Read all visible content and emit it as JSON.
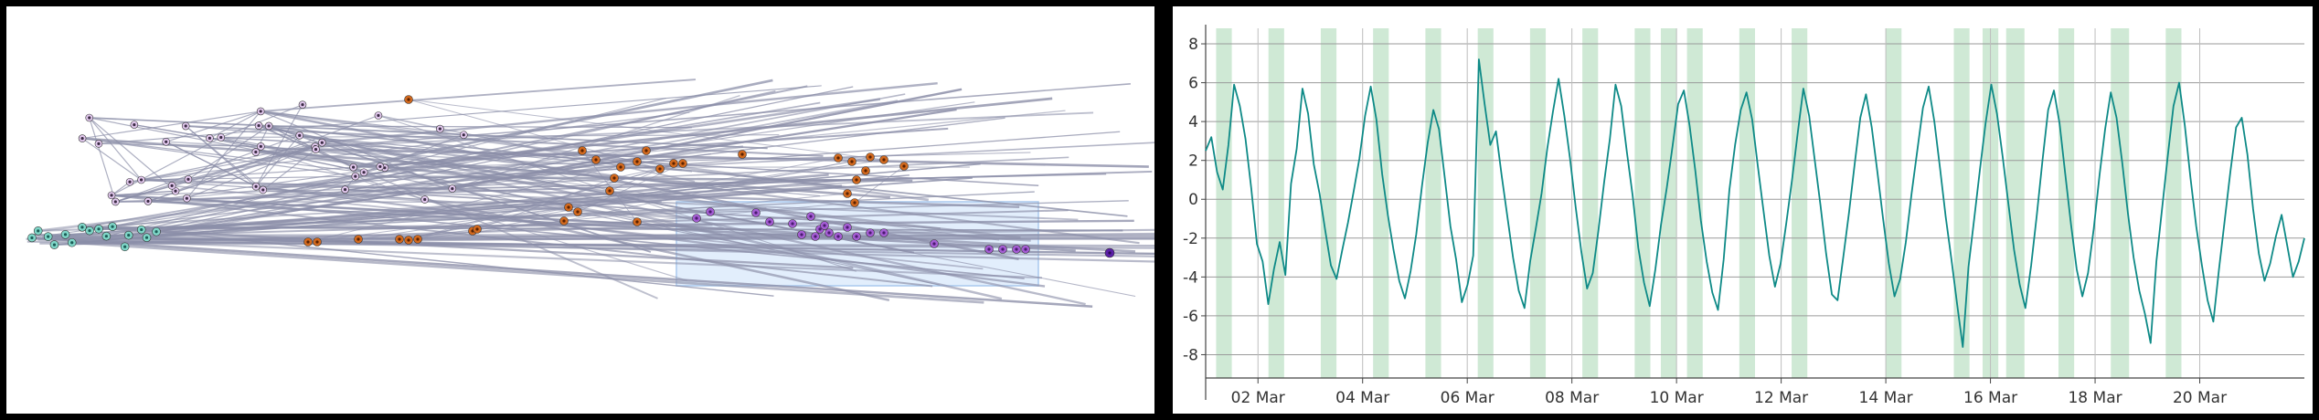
{
  "left_plot": {
    "brush_color": "#cfe3fb",
    "clusters": [
      {
        "name": "teal",
        "color": "#7fd6c8"
      },
      {
        "name": "lavender",
        "color": "#e2c9ee"
      },
      {
        "name": "orange",
        "color": "#d2691e"
      },
      {
        "name": "purple",
        "color": "#a45dd3"
      }
    ],
    "edge_color": "#8b8ea8"
  },
  "chart_data": {
    "type": "line",
    "title": "",
    "xlabel": "",
    "ylabel": "",
    "ylim": [
      -9.2,
      8.8
    ],
    "yticks": [
      -8,
      -6,
      -4,
      -2,
      0,
      2,
      4,
      6,
      8
    ],
    "ytick_labels": [
      "-8",
      "-6",
      "-4",
      "-2",
      "0",
      "2",
      "4",
      "6",
      "8"
    ],
    "xlim_days": [
      1,
      22
    ],
    "xticks_days": [
      2,
      4,
      6,
      8,
      10,
      12,
      14,
      16,
      18,
      20
    ],
    "xtick_labels": [
      "02 Mar",
      "04 Mar",
      "06 Mar",
      "08 Mar",
      "10 Mar",
      "12 Mar",
      "14 Mar",
      "16 Mar",
      "18 Mar",
      "20 Mar"
    ],
    "grid": true,
    "line_color": "#0e8a87",
    "band_color": "#cfe9d5",
    "highlight_bands_days": [
      [
        1.2,
        1.5
      ],
      [
        2.2,
        2.5
      ],
      [
        3.2,
        3.5
      ],
      [
        4.2,
        4.5
      ],
      [
        5.2,
        5.5
      ],
      [
        6.2,
        6.5
      ],
      [
        7.2,
        7.5
      ],
      [
        8.2,
        8.5
      ],
      [
        9.2,
        9.5
      ],
      [
        9.7,
        10.0
      ],
      [
        10.2,
        10.5
      ],
      [
        11.2,
        11.5
      ],
      [
        12.2,
        12.5
      ],
      [
        14.0,
        14.3
      ],
      [
        15.3,
        15.6
      ],
      [
        15.85,
        16.15
      ],
      [
        16.3,
        16.65
      ],
      [
        17.3,
        17.6
      ],
      [
        18.3,
        18.65
      ],
      [
        19.35,
        19.65
      ]
    ],
    "series": [
      {
        "values": [
          2.5,
          3.2,
          1.4,
          0.5,
          2.8,
          5.9,
          4.8,
          3.1,
          0.6,
          -2.3,
          -3.2,
          -5.4,
          -3.6,
          -2.2,
          -3.9,
          0.8,
          2.6,
          5.7,
          4.4,
          1.8,
          0.3,
          -1.6,
          -3.4,
          -4.1,
          -2.6,
          -1.2,
          0.4,
          2.1,
          4.3,
          5.8,
          4.1,
          1.3,
          -0.8,
          -2.6,
          -4.2,
          -5.1,
          -3.7,
          -1.8,
          0.7,
          2.9,
          4.6,
          3.6,
          1.1,
          -1.4,
          -3.1,
          -5.3,
          -4.4,
          -2.9,
          7.2,
          4.9,
          2.8,
          3.5,
          1.2,
          -0.9,
          -3.0,
          -4.7,
          -5.6,
          -3.2,
          -1.5,
          0.3,
          2.6,
          4.5,
          6.2,
          4.3,
          2.1,
          -0.4,
          -2.7,
          -4.6,
          -3.8,
          -1.6,
          0.9,
          3.1,
          5.9,
          4.8,
          2.4,
          0.2,
          -2.5,
          -4.3,
          -5.5,
          -3.6,
          -1.3,
          0.6,
          2.7,
          4.9,
          5.6,
          3.8,
          1.5,
          -1.1,
          -3.2,
          -4.8,
          -5.7,
          -3.1,
          0.5,
          2.8,
          4.6,
          5.5,
          4.1,
          1.7,
          -0.6,
          -2.9,
          -4.5,
          -3.3,
          -1.2,
          1.0,
          3.4,
          5.7,
          4.3,
          2.0,
          -0.3,
          -2.8,
          -4.9,
          -5.2,
          -3.0,
          -0.7,
          1.8,
          4.2,
          5.4,
          3.7,
          1.4,
          -1.0,
          -3.3,
          -5.0,
          -4.1,
          -2.2,
          0.3,
          2.5,
          4.7,
          5.8,
          4.0,
          1.6,
          -0.9,
          -3.1,
          -5.4,
          -7.6,
          -3.5,
          -1.0,
          1.5,
          3.9,
          5.9,
          4.4,
          2.2,
          -0.2,
          -2.6,
          -4.4,
          -5.6,
          -3.4,
          -0.8,
          2.0,
          4.6,
          5.6,
          3.9,
          1.3,
          -1.3,
          -3.6,
          -5.0,
          -3.8,
          -1.5,
          1.2,
          3.6,
          5.5,
          4.2,
          1.9,
          -0.7,
          -3.0,
          -4.7,
          -5.9,
          -7.4,
          -3.2,
          -0.5,
          2.2,
          4.8,
          6.0,
          3.8,
          1.1,
          -1.4,
          -3.4,
          -5.2,
          -6.3,
          -3.6,
          -1.1,
          1.4,
          3.7,
          4.2,
          2.3,
          -0.5,
          -2.8,
          -4.2,
          -3.3,
          -1.9,
          -0.8,
          -2.4,
          -4.0,
          -3.2,
          -2.0
        ]
      }
    ]
  }
}
